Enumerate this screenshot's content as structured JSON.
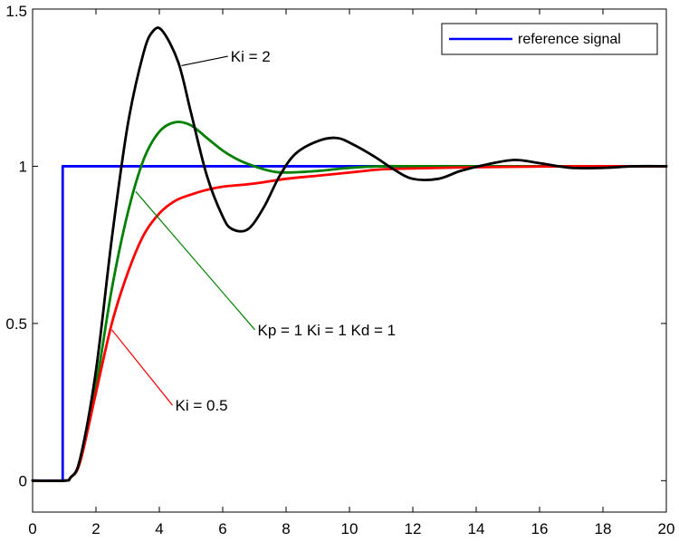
{
  "chart_data": {
    "type": "line",
    "title": "",
    "xlabel": "",
    "ylabel": "",
    "xlim": [
      0,
      20
    ],
    "ylim": [
      -0.1,
      1.5
    ],
    "x_ticks": [
      0,
      2,
      4,
      6,
      8,
      10,
      12,
      14,
      16,
      18,
      20
    ],
    "y_ticks": [
      0,
      0.5,
      1,
      1.5
    ],
    "x_tick_labels": [
      "0",
      "2",
      "4",
      "6",
      "8",
      "10",
      "12",
      "14",
      "16",
      "18",
      "20"
    ],
    "y_tick_labels": [
      "0",
      "0.5",
      "1",
      "1.5"
    ],
    "grid": false,
    "legend": {
      "position": "top-right",
      "entries": [
        "reference signal"
      ]
    },
    "series": [
      {
        "name": "reference signal",
        "color": "#0000ff",
        "points": [
          [
            0,
            0
          ],
          [
            0.95,
            0
          ],
          [
            0.95,
            1
          ],
          [
            20,
            1
          ]
        ]
      },
      {
        "name": "Ki = 2",
        "color": "#000000",
        "points": [
          [
            0,
            0
          ],
          [
            1,
            0
          ],
          [
            1.2,
            0.01
          ],
          [
            1.5,
            0.07
          ],
          [
            2,
            0.35
          ],
          [
            2.5,
            0.77
          ],
          [
            3,
            1.13
          ],
          [
            3.5,
            1.36
          ],
          [
            3.8,
            1.43
          ],
          [
            4.1,
            1.43
          ],
          [
            4.6,
            1.33
          ],
          [
            5,
            1.17
          ],
          [
            5.5,
            0.97
          ],
          [
            6,
            0.84
          ],
          [
            6.3,
            0.8
          ],
          [
            6.8,
            0.8
          ],
          [
            7.3,
            0.87
          ],
          [
            7.8,
            0.97
          ],
          [
            8.3,
            1.04
          ],
          [
            9,
            1.08
          ],
          [
            9.6,
            1.09
          ],
          [
            10.1,
            1.07
          ],
          [
            10.8,
            1.03
          ],
          [
            11.4,
            0.99
          ],
          [
            12,
            0.96
          ],
          [
            12.8,
            0.96
          ],
          [
            13.5,
            0.985
          ],
          [
            14.3,
            1.005
          ],
          [
            15.2,
            1.02
          ],
          [
            16,
            1.01
          ],
          [
            17,
            0.995
          ],
          [
            18,
            0.995
          ],
          [
            19,
            1.0
          ],
          [
            20,
            1.0
          ]
        ]
      },
      {
        "name": "Kp = 1  Ki = 1  Kd = 1",
        "color": "#008000",
        "points": [
          [
            0,
            0
          ],
          [
            1,
            0
          ],
          [
            1.2,
            0.01
          ],
          [
            1.5,
            0.06
          ],
          [
            2,
            0.3
          ],
          [
            2.5,
            0.61
          ],
          [
            3,
            0.85
          ],
          [
            3.5,
            1.02
          ],
          [
            4,
            1.11
          ],
          [
            4.5,
            1.14
          ],
          [
            5,
            1.13
          ],
          [
            5.5,
            1.09
          ],
          [
            6,
            1.05
          ],
          [
            6.5,
            1.02
          ],
          [
            7,
            1.0
          ],
          [
            7.5,
            0.985
          ],
          [
            8,
            0.98
          ],
          [
            9,
            0.985
          ],
          [
            10,
            0.995
          ],
          [
            11,
            1.0
          ],
          [
            12,
            1.0
          ],
          [
            14,
            1.0
          ],
          [
            16,
            1.0
          ],
          [
            18,
            1.0
          ],
          [
            20,
            1.0
          ]
        ]
      },
      {
        "name": "Ki = 0.5",
        "color": "#ff0000",
        "points": [
          [
            0,
            0
          ],
          [
            1,
            0
          ],
          [
            1.2,
            0.01
          ],
          [
            1.5,
            0.06
          ],
          [
            2,
            0.28
          ],
          [
            2.5,
            0.5
          ],
          [
            3,
            0.66
          ],
          [
            3.5,
            0.78
          ],
          [
            4,
            0.85
          ],
          [
            4.5,
            0.89
          ],
          [
            5,
            0.91
          ],
          [
            5.5,
            0.925
          ],
          [
            6,
            0.935
          ],
          [
            7,
            0.945
          ],
          [
            8,
            0.96
          ],
          [
            9,
            0.97
          ],
          [
            10,
            0.98
          ],
          [
            11,
            0.99
          ],
          [
            12,
            0.993
          ],
          [
            14,
            0.997
          ],
          [
            16,
            0.999
          ],
          [
            18,
            1.0
          ],
          [
            20,
            1.0
          ]
        ]
      }
    ],
    "annotations": [
      {
        "text": "Ki = 2",
        "series": "Ki = 2",
        "anchor": [
          4.7,
          1.32
        ],
        "label_at": [
          6.25,
          1.35
        ],
        "line_color": "#000000"
      },
      {
        "text": "Kp = 1  Ki = 1  Kd = 1",
        "series": "Kp = 1  Ki = 1  Kd = 1",
        "anchor": [
          3.25,
          0.92
        ],
        "label_at": [
          7.1,
          0.48
        ],
        "line_color": "#008000"
      },
      {
        "text": "Ki = 0.5",
        "series": "Ki = 0.5",
        "anchor": [
          2.5,
          0.48
        ],
        "label_at": [
          4.5,
          0.24
        ],
        "line_color": "#ff0000"
      }
    ]
  }
}
